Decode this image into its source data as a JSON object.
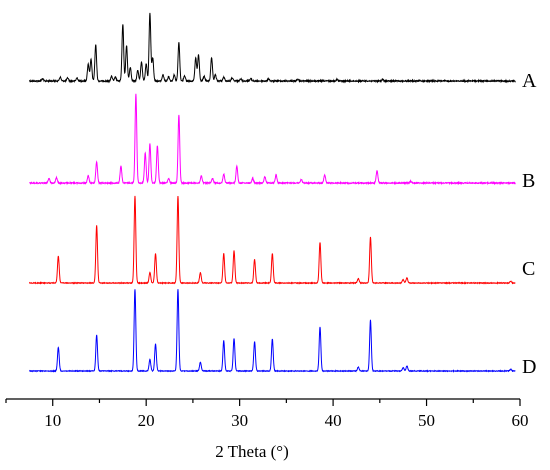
{
  "chart_data": {
    "type": "line",
    "xlabel": "2 Theta (°)",
    "ylabel": "",
    "xlim": [
      5,
      60
    ],
    "xticks": [
      10,
      20,
      30,
      40,
      50,
      60
    ],
    "grid": false,
    "legend": "labels at right end of each trace",
    "series": [
      {
        "name": "A",
        "color": "#000000",
        "peaks": [
          [
            8.9,
            0.03
          ],
          [
            10.8,
            0.05
          ],
          [
            11.6,
            0.04
          ],
          [
            12.6,
            0.04
          ],
          [
            13.8,
            0.22
          ],
          [
            14.1,
            0.28
          ],
          [
            14.6,
            0.47
          ],
          [
            16.3,
            0.06
          ],
          [
            16.7,
            0.05
          ],
          [
            17.5,
            0.74
          ],
          [
            17.9,
            0.46
          ],
          [
            18.3,
            0.18
          ],
          [
            19.1,
            0.14
          ],
          [
            19.5,
            0.25
          ],
          [
            20.0,
            0.22
          ],
          [
            20.4,
            0.88
          ],
          [
            20.7,
            0.3
          ],
          [
            21.8,
            0.08
          ],
          [
            22.4,
            0.06
          ],
          [
            23.0,
            0.08
          ],
          [
            23.5,
            0.5
          ],
          [
            24.1,
            0.07
          ],
          [
            25.3,
            0.3
          ],
          [
            25.6,
            0.34
          ],
          [
            26.2,
            0.06
          ],
          [
            27.0,
            0.3
          ],
          [
            27.4,
            0.08
          ],
          [
            28.3,
            0.05
          ],
          [
            29.2,
            0.04
          ],
          [
            30.1,
            0.03
          ],
          [
            31.2,
            0.03
          ],
          [
            33.1,
            0.03
          ],
          [
            36.2,
            0.02
          ],
          [
            40.4,
            0.02
          ],
          [
            45.3,
            0.02
          ]
        ]
      },
      {
        "name": "B",
        "color": "#ff00ff",
        "peaks": [
          [
            9.6,
            0.05
          ],
          [
            10.4,
            0.06
          ],
          [
            13.8,
            0.08
          ],
          [
            14.7,
            0.24
          ],
          [
            17.3,
            0.19
          ],
          [
            18.9,
            1.0
          ],
          [
            19.9,
            0.34
          ],
          [
            20.4,
            0.44
          ],
          [
            21.2,
            0.42
          ],
          [
            22.4,
            0.05
          ],
          [
            23.5,
            0.77
          ],
          [
            25.9,
            0.08
          ],
          [
            27.1,
            0.05
          ],
          [
            28.3,
            0.1
          ],
          [
            29.7,
            0.19
          ],
          [
            31.4,
            0.05
          ],
          [
            32.7,
            0.07
          ],
          [
            33.9,
            0.09
          ],
          [
            36.6,
            0.04
          ],
          [
            39.1,
            0.09
          ],
          [
            44.7,
            0.14
          ],
          [
            48.3,
            0.02
          ]
        ]
      },
      {
        "name": "C",
        "color": "#ff0000",
        "peaks": [
          [
            10.6,
            0.31
          ],
          [
            14.7,
            0.66
          ],
          [
            18.8,
            1.0
          ],
          [
            20.4,
            0.12
          ],
          [
            21.0,
            0.34
          ],
          [
            23.4,
            1.0
          ],
          [
            25.8,
            0.12
          ],
          [
            28.3,
            0.34
          ],
          [
            29.4,
            0.37
          ],
          [
            31.6,
            0.27
          ],
          [
            33.5,
            0.34
          ],
          [
            38.6,
            0.47
          ],
          [
            42.7,
            0.05
          ],
          [
            44.0,
            0.53
          ],
          [
            47.5,
            0.04
          ],
          [
            47.9,
            0.06
          ],
          [
            59.0,
            0.02
          ]
        ]
      },
      {
        "name": "D",
        "color": "#0000ff",
        "peaks": [
          [
            10.6,
            0.29
          ],
          [
            14.7,
            0.44
          ],
          [
            18.8,
            1.0
          ],
          [
            20.4,
            0.14
          ],
          [
            21.0,
            0.33
          ],
          [
            23.4,
            1.0
          ],
          [
            25.8,
            0.11
          ],
          [
            28.3,
            0.37
          ],
          [
            29.4,
            0.4
          ],
          [
            31.6,
            0.36
          ],
          [
            33.5,
            0.39
          ],
          [
            38.6,
            0.54
          ],
          [
            42.7,
            0.05
          ],
          [
            44.0,
            0.62
          ],
          [
            47.5,
            0.04
          ],
          [
            47.9,
            0.06
          ],
          [
            59.0,
            0.02
          ]
        ]
      }
    ]
  }
}
